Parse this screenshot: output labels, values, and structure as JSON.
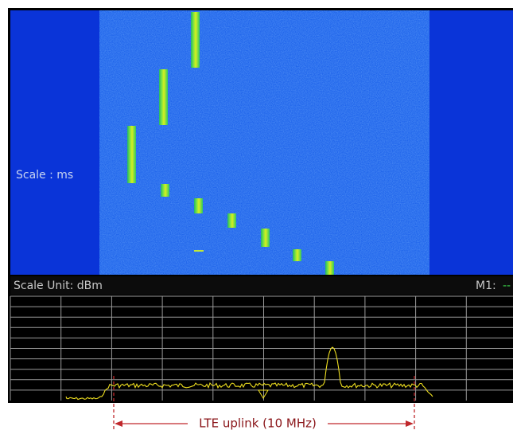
{
  "spectrogram": {
    "scale_label": "Scale : ms"
  },
  "status_bar": {
    "scale_unit": "Scale Unit: dBm",
    "marker_label": "M1:",
    "marker_value": "--"
  },
  "annotation": {
    "label": "LTE uplink (10 MHz)"
  }
}
